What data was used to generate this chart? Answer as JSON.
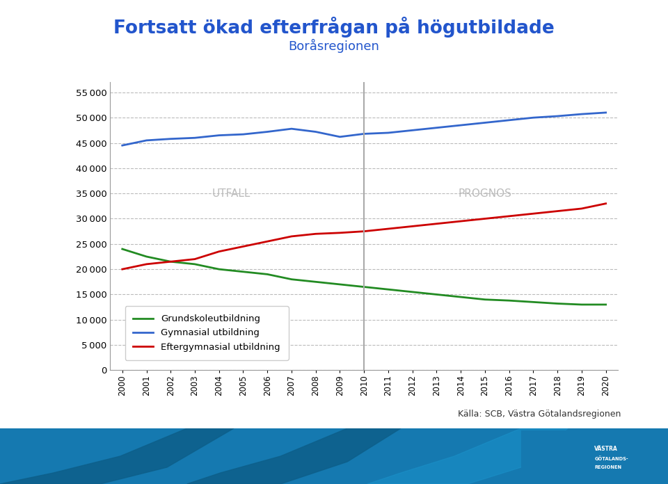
{
  "title_line1": "Fortsatt ökad efterfrågan på högutbildade",
  "title_line2": "Boråsregionen",
  "title_color": "#2255CC",
  "years": [
    2000,
    2001,
    2002,
    2003,
    2004,
    2005,
    2006,
    2007,
    2008,
    2009,
    2010,
    2011,
    2012,
    2013,
    2014,
    2015,
    2016,
    2017,
    2018,
    2019,
    2020
  ],
  "gymnasial": [
    44500,
    45500,
    45800,
    46000,
    46500,
    46700,
    47200,
    47800,
    47200,
    46200,
    46800,
    47000,
    47500,
    48000,
    48500,
    49000,
    49500,
    50000,
    50300,
    50700,
    51000
  ],
  "grundskola": [
    24000,
    22500,
    21500,
    21000,
    20000,
    19500,
    19000,
    18000,
    17500,
    17000,
    16500,
    16000,
    15500,
    15000,
    14500,
    14000,
    13800,
    13500,
    13200,
    13000,
    13000
  ],
  "eftergymnasial": [
    20000,
    21000,
    21500,
    22000,
    23500,
    24500,
    25500,
    26500,
    27000,
    27200,
    27500,
    28000,
    28500,
    29000,
    29500,
    30000,
    30500,
    31000,
    31500,
    32000,
    33000
  ],
  "split_year": 2010,
  "utfall_label": "UTFALL",
  "prognos_label": "PROGNOS",
  "legend_labels": [
    "Grundskoleutbildning",
    "Gymnasial utbildning",
    "Eftergymnasial utbildning"
  ],
  "line_colors": [
    "#228B22",
    "#3366CC",
    "#CC0000"
  ],
  "ylim": [
    0,
    57000
  ],
  "yticks": [
    0,
    5000,
    10000,
    15000,
    20000,
    25000,
    30000,
    35000,
    40000,
    45000,
    50000,
    55000
  ],
  "source_text": "Källa: SCB, Västra Götalandsregionen",
  "background_color": "#FFFFFF",
  "grid_color": "#BBBBBB",
  "split_line_color": "#AAAAAA",
  "utfall_prognos_color": "#BBBBBB",
  "bottom_band_color1": "#1A7AAF",
  "bottom_band_color2": "#0A5C8A"
}
